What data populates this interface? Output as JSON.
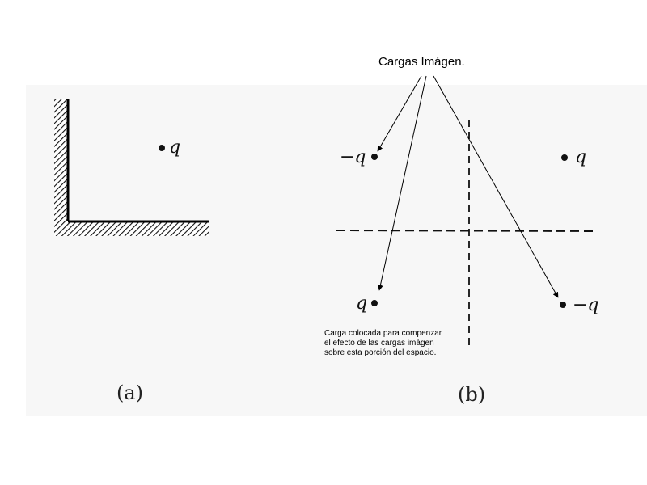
{
  "title": "Cargas Imágen.",
  "note_lines": [
    "Carga colocada para compenzar",
    "el efecto de las cargas imágen",
    "sobre esta porción del espacio."
  ],
  "panel_a": {
    "label": "(a)",
    "charge": "q"
  },
  "panel_b": {
    "label": "(b)",
    "charges": {
      "top_left": "−q",
      "top_right": "q",
      "bottom_left": "q",
      "bottom_right": "−q"
    }
  }
}
